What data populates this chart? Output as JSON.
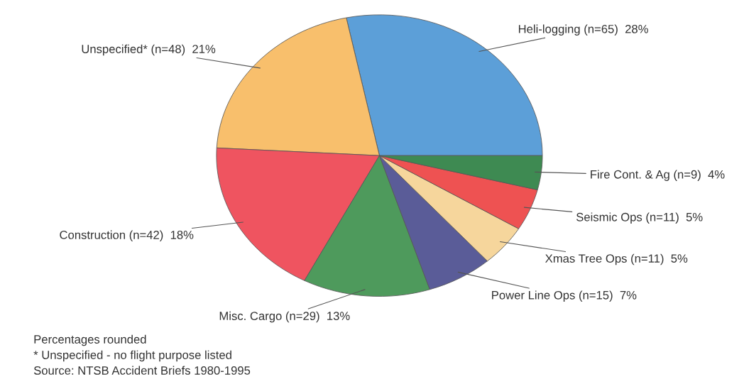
{
  "chart_data": {
    "type": "pie",
    "categories": [
      "Heli-logging (n=65)  28%",
      "Unspecified* (n=48)  21%",
      "Construction (n=42)  18%",
      "Misc. Cargo (n=29)  13%",
      "Power Line Ops (n=15)  7%",
      "Xmas Tree Ops (n=11)  5%",
      "Seismic Ops (n=11)  5%",
      "Fire Cont. & Ag (n=9)  4%"
    ],
    "values": [
      65,
      48,
      42,
      29,
      15,
      11,
      11,
      9
    ],
    "colors": [
      "#5c9fd8",
      "#f8bf6c",
      "#ef5460",
      "#4e9a5c",
      "#5a5c98",
      "#f6d69c",
      "#ee5252",
      "#3e8a52"
    ],
    "annotations": [
      "Percentages rounded",
      "* Unspecified - no flight purpose listed",
      "Source: NTSB Accident Briefs 1980-1995"
    ]
  }
}
